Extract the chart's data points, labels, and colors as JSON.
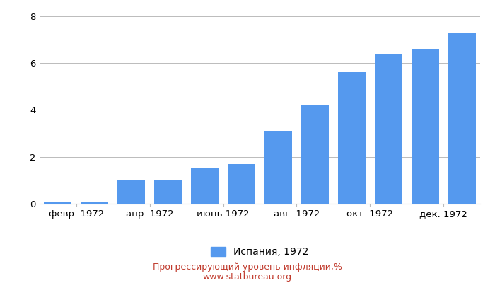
{
  "values": [
    0.1,
    0.1,
    1.0,
    1.0,
    1.5,
    1.7,
    3.1,
    4.2,
    5.6,
    6.4,
    6.6,
    7.3
  ],
  "tick_labels": [
    "февр. 1972",
    "апр. 1972",
    "июнь 1972",
    "авг. 1972",
    "окт. 1972",
    "дек. 1972"
  ],
  "tick_positions": [
    0.5,
    2.5,
    4.5,
    6.5,
    8.5,
    10.5
  ],
  "bar_color": "#5599ee",
  "background_color": "#ffffff",
  "grid_color": "#bbbbbb",
  "ylim": [
    0,
    8.2
  ],
  "yticks": [
    0,
    2,
    4,
    6,
    8
  ],
  "legend_label": "Испания, 1972",
  "footer_line1": "Прогрессирующий уровень инфляции,%",
  "footer_line2": "www.statbureau.org",
  "footer_color": "#c0392b",
  "tick_fontsize": 9.5,
  "legend_fontsize": 10,
  "footer_fontsize": 9
}
